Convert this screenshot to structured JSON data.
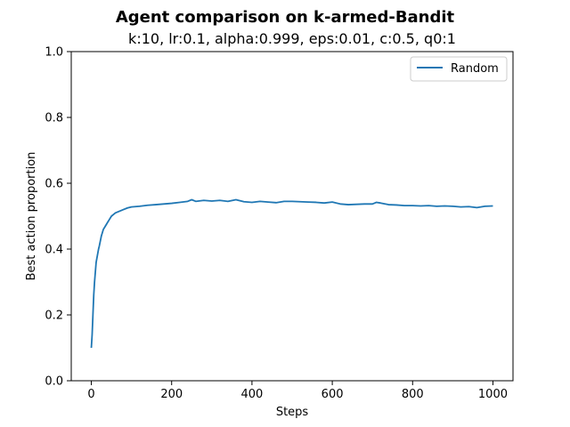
{
  "chart_data": {
    "type": "line",
    "title": "Agent comparison on k-armed-Bandit",
    "subtitle": "k:10, lr:0.1, alpha:0.999, eps:0.01, c:0.5, q0:1",
    "xlabel": "Steps",
    "ylabel": "Best action proportion",
    "xlim": [
      -50,
      1050
    ],
    "ylim": [
      0,
      1.0
    ],
    "x_ticks": [
      0,
      200,
      400,
      600,
      800,
      1000
    ],
    "y_ticks": [
      0.0,
      0.2,
      0.4,
      0.6,
      0.8,
      1.0
    ],
    "x_tick_labels": [
      "0",
      "200",
      "400",
      "600",
      "800",
      "1000"
    ],
    "y_tick_labels": [
      "0.0",
      "0.2",
      "0.4",
      "0.6",
      "0.8",
      "1.0"
    ],
    "grid": false,
    "legend_position": "top-right",
    "series": [
      {
        "name": "Random",
        "color": "#1f77b4",
        "x": [
          0,
          2,
          4,
          6,
          8,
          10,
          12,
          15,
          18,
          20,
          25,
          30,
          35,
          40,
          45,
          50,
          60,
          70,
          80,
          90,
          100,
          120,
          140,
          160,
          180,
          200,
          220,
          240,
          250,
          260,
          280,
          300,
          320,
          340,
          360,
          380,
          400,
          420,
          440,
          460,
          480,
          500,
          520,
          540,
          560,
          580,
          600,
          620,
          640,
          660,
          680,
          700,
          710,
          720,
          740,
          760,
          780,
          800,
          820,
          840,
          860,
          880,
          900,
          920,
          940,
          960,
          980,
          1000
        ],
        "y": [
          0.1,
          0.14,
          0.2,
          0.26,
          0.3,
          0.33,
          0.36,
          0.38,
          0.4,
          0.41,
          0.44,
          0.46,
          0.47,
          0.48,
          0.49,
          0.5,
          0.51,
          0.515,
          0.52,
          0.525,
          0.528,
          0.53,
          0.533,
          0.535,
          0.537,
          0.539,
          0.542,
          0.545,
          0.55,
          0.545,
          0.548,
          0.546,
          0.548,
          0.545,
          0.55,
          0.544,
          0.542,
          0.545,
          0.543,
          0.541,
          0.545,
          0.545,
          0.544,
          0.543,
          0.542,
          0.54,
          0.543,
          0.537,
          0.535,
          0.536,
          0.537,
          0.537,
          0.542,
          0.54,
          0.535,
          0.534,
          0.532,
          0.532,
          0.531,
          0.532,
          0.53,
          0.531,
          0.53,
          0.528,
          0.529,
          0.526,
          0.53,
          0.531
        ]
      }
    ]
  }
}
